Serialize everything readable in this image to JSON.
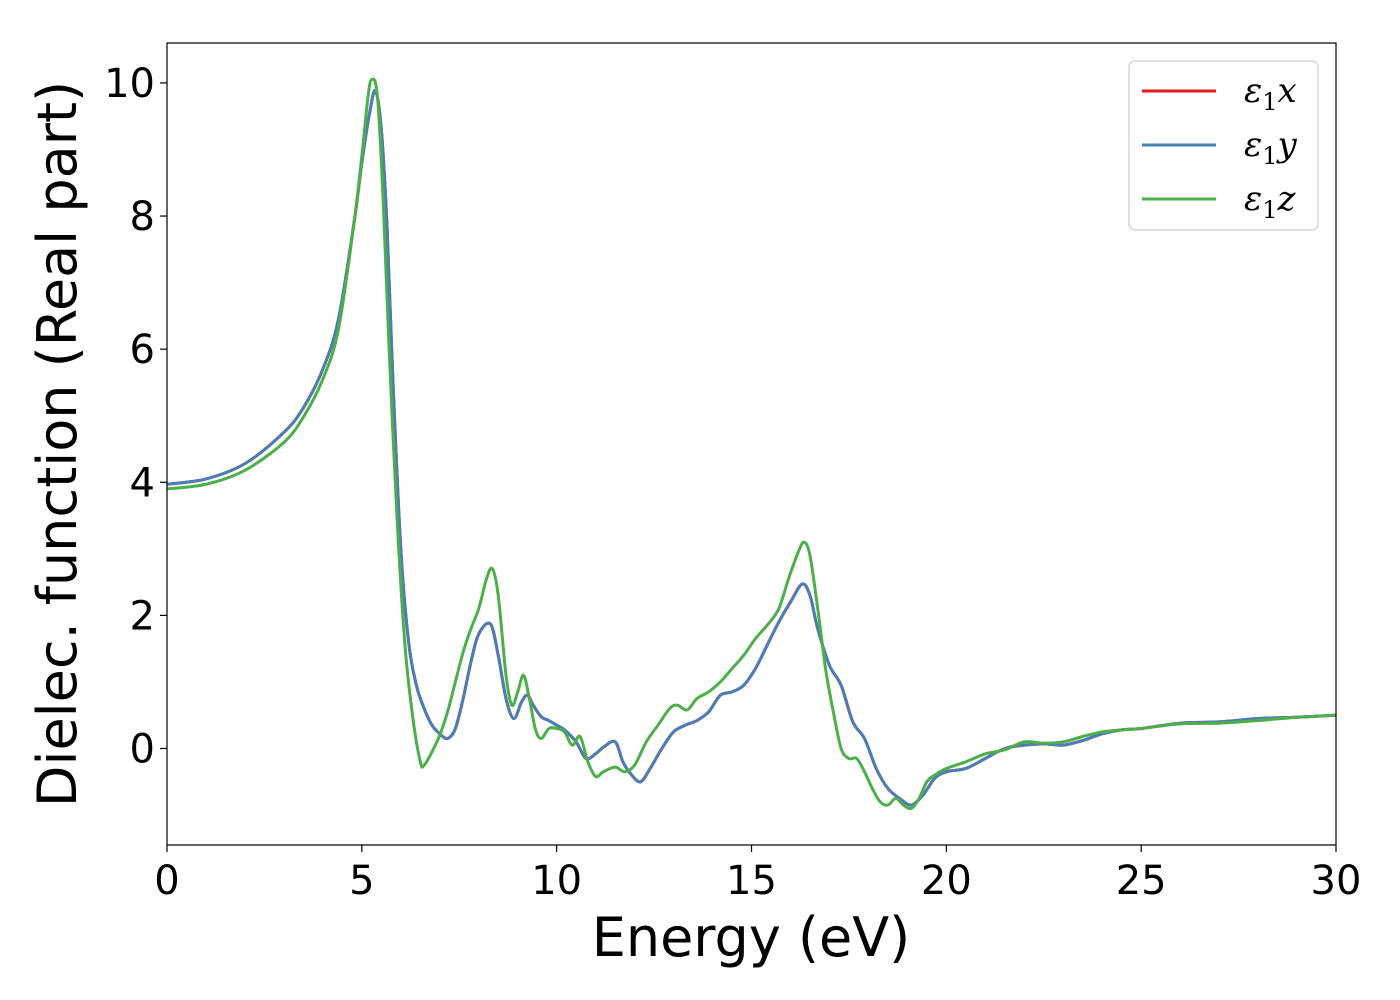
{
  "chart_data": {
    "type": "line",
    "xlabel": "Energy (eV)",
    "ylabel": "Dielec. function (Real part)",
    "xlim": [
      0,
      30
    ],
    "ylim": [
      -1.45,
      10.6
    ],
    "xticks": [
      0,
      5,
      10,
      15,
      20,
      25,
      30
    ],
    "yticks": [
      0,
      2,
      4,
      6,
      8,
      10
    ],
    "grid": false,
    "legend_position": "top-right",
    "series": [
      {
        "name": "ε₁x",
        "legend_base": "ε",
        "legend_sub": "1",
        "legend_var": "x",
        "color": "#e41a1c",
        "x": [
          0,
          1,
          2,
          3,
          3.5,
          4,
          4.4,
          4.8,
          5.0,
          5.2,
          5.35,
          5.5,
          5.65,
          5.8,
          6.0,
          6.2,
          6.4,
          6.6,
          6.8,
          7.0,
          7.2,
          7.4,
          7.6,
          7.8,
          8.0,
          8.3,
          8.5,
          8.7,
          8.9,
          9.1,
          9.25,
          9.4,
          9.6,
          9.8,
          10.0,
          10.2,
          10.5,
          10.75,
          11.0,
          11.2,
          11.5,
          11.7,
          11.9,
          12.15,
          12.4,
          12.7,
          13.0,
          13.3,
          13.6,
          13.9,
          14.2,
          14.5,
          14.8,
          15.1,
          15.4,
          15.7,
          16.0,
          16.3,
          16.5,
          16.7,
          17.0,
          17.3,
          17.6,
          17.9,
          18.2,
          18.5,
          18.8,
          19.1,
          19.4,
          19.7,
          20.0,
          20.5,
          21.0,
          21.5,
          22.0,
          22.5,
          23.0,
          23.5,
          24.0,
          24.5,
          25.0,
          26.0,
          27.0,
          28.0,
          29.0,
          30.0
        ],
        "y": [
          3.97,
          4.05,
          4.28,
          4.75,
          5.12,
          5.7,
          6.45,
          7.9,
          8.8,
          9.55,
          9.88,
          9.3,
          7.8,
          5.5,
          3.0,
          1.6,
          0.95,
          0.6,
          0.35,
          0.22,
          0.15,
          0.3,
          0.75,
          1.3,
          1.72,
          1.87,
          1.4,
          0.75,
          0.45,
          0.7,
          0.8,
          0.65,
          0.48,
          0.42,
          0.35,
          0.28,
          0.1,
          -0.15,
          -0.08,
          0.02,
          0.1,
          -0.2,
          -0.38,
          -0.5,
          -0.3,
          0.0,
          0.25,
          0.35,
          0.42,
          0.55,
          0.8,
          0.85,
          0.95,
          1.2,
          1.55,
          1.9,
          2.2,
          2.47,
          2.3,
          1.8,
          1.25,
          0.95,
          0.4,
          0.15,
          -0.3,
          -0.6,
          -0.75,
          -0.85,
          -0.7,
          -0.45,
          -0.35,
          -0.3,
          -0.15,
          0.0,
          0.05,
          0.07,
          0.05,
          0.12,
          0.22,
          0.28,
          0.3,
          0.38,
          0.4,
          0.45,
          0.47,
          0.5
        ]
      },
      {
        "name": "ε₁y",
        "legend_base": "ε",
        "legend_sub": "1",
        "legend_var": "y",
        "color": "#4a7fb5",
        "x": [
          0,
          1,
          2,
          3,
          3.5,
          4,
          4.4,
          4.8,
          5.0,
          5.2,
          5.35,
          5.5,
          5.65,
          5.8,
          6.0,
          6.2,
          6.4,
          6.6,
          6.8,
          7.0,
          7.2,
          7.4,
          7.6,
          7.8,
          8.0,
          8.3,
          8.5,
          8.7,
          8.9,
          9.1,
          9.25,
          9.4,
          9.6,
          9.8,
          10.0,
          10.2,
          10.5,
          10.75,
          11.0,
          11.2,
          11.5,
          11.7,
          11.9,
          12.15,
          12.4,
          12.7,
          13.0,
          13.3,
          13.6,
          13.9,
          14.2,
          14.5,
          14.8,
          15.1,
          15.4,
          15.7,
          16.0,
          16.3,
          16.5,
          16.7,
          17.0,
          17.3,
          17.6,
          17.9,
          18.2,
          18.5,
          18.8,
          19.1,
          19.4,
          19.7,
          20.0,
          20.5,
          21.0,
          21.5,
          22.0,
          22.5,
          23.0,
          23.5,
          24.0,
          24.5,
          25.0,
          26.0,
          27.0,
          28.0,
          29.0,
          30.0
        ],
        "y": [
          3.97,
          4.05,
          4.28,
          4.75,
          5.12,
          5.7,
          6.45,
          7.9,
          8.8,
          9.55,
          9.88,
          9.3,
          7.8,
          5.5,
          3.0,
          1.6,
          0.95,
          0.6,
          0.35,
          0.22,
          0.15,
          0.3,
          0.75,
          1.3,
          1.72,
          1.87,
          1.4,
          0.75,
          0.45,
          0.7,
          0.8,
          0.65,
          0.48,
          0.42,
          0.35,
          0.28,
          0.1,
          -0.15,
          -0.08,
          0.02,
          0.1,
          -0.2,
          -0.38,
          -0.5,
          -0.3,
          0.0,
          0.25,
          0.35,
          0.42,
          0.55,
          0.8,
          0.85,
          0.95,
          1.2,
          1.55,
          1.9,
          2.2,
          2.47,
          2.3,
          1.8,
          1.25,
          0.95,
          0.4,
          0.15,
          -0.3,
          -0.6,
          -0.75,
          -0.85,
          -0.7,
          -0.45,
          -0.35,
          -0.3,
          -0.15,
          0.0,
          0.05,
          0.07,
          0.05,
          0.12,
          0.22,
          0.28,
          0.3,
          0.38,
          0.4,
          0.45,
          0.47,
          0.5
        ]
      },
      {
        "name": "ε₁z",
        "legend_base": "ε",
        "legend_sub": "1",
        "legend_var": "z",
        "color": "#4daf4a",
        "x": [
          0,
          1,
          2,
          3,
          3.5,
          4,
          4.4,
          4.8,
          5.0,
          5.15,
          5.25,
          5.4,
          5.55,
          5.7,
          5.9,
          6.1,
          6.3,
          6.5,
          6.6,
          6.8,
          7.0,
          7.2,
          7.4,
          7.6,
          7.8,
          8.0,
          8.2,
          8.35,
          8.5,
          8.7,
          8.85,
          9.0,
          9.15,
          9.3,
          9.45,
          9.6,
          9.8,
          10.0,
          10.2,
          10.4,
          10.6,
          10.8,
          11.0,
          11.2,
          11.5,
          11.75,
          12.0,
          12.3,
          12.6,
          12.9,
          13.1,
          13.35,
          13.6,
          13.9,
          14.2,
          14.5,
          14.8,
          15.1,
          15.4,
          15.7,
          15.95,
          16.2,
          16.35,
          16.5,
          16.7,
          16.9,
          17.1,
          17.3,
          17.5,
          17.7,
          17.9,
          18.1,
          18.3,
          18.5,
          18.7,
          18.9,
          19.1,
          19.3,
          19.5,
          19.7,
          20.0,
          20.5,
          21.0,
          21.5,
          22.0,
          22.5,
          23.0,
          23.5,
          24.0,
          24.5,
          25.0,
          26.0,
          27.0,
          28.0,
          29.0,
          30.0
        ],
        "y": [
          3.9,
          3.97,
          4.18,
          4.6,
          4.98,
          5.55,
          6.3,
          7.9,
          8.9,
          9.75,
          10.05,
          9.8,
          8.2,
          6.0,
          3.5,
          1.6,
          0.5,
          -0.2,
          -0.25,
          -0.05,
          0.2,
          0.55,
          1.0,
          1.45,
          1.8,
          2.1,
          2.55,
          2.7,
          2.3,
          1.1,
          0.65,
          0.85,
          1.1,
          0.75,
          0.3,
          0.15,
          0.3,
          0.3,
          0.25,
          0.05,
          0.18,
          -0.2,
          -0.42,
          -0.35,
          -0.28,
          -0.35,
          -0.25,
          0.1,
          0.35,
          0.6,
          0.65,
          0.58,
          0.75,
          0.85,
          1.0,
          1.2,
          1.4,
          1.65,
          1.85,
          2.1,
          2.55,
          2.95,
          3.1,
          2.9,
          2.1,
          1.2,
          0.55,
          0.0,
          -0.15,
          -0.15,
          -0.35,
          -0.6,
          -0.8,
          -0.85,
          -0.75,
          -0.85,
          -0.9,
          -0.75,
          -0.5,
          -0.4,
          -0.3,
          -0.2,
          -0.08,
          -0.02,
          0.1,
          0.08,
          0.1,
          0.18,
          0.25,
          0.28,
          0.3,
          0.37,
          0.38,
          0.42,
          0.47,
          0.5
        ]
      }
    ]
  }
}
